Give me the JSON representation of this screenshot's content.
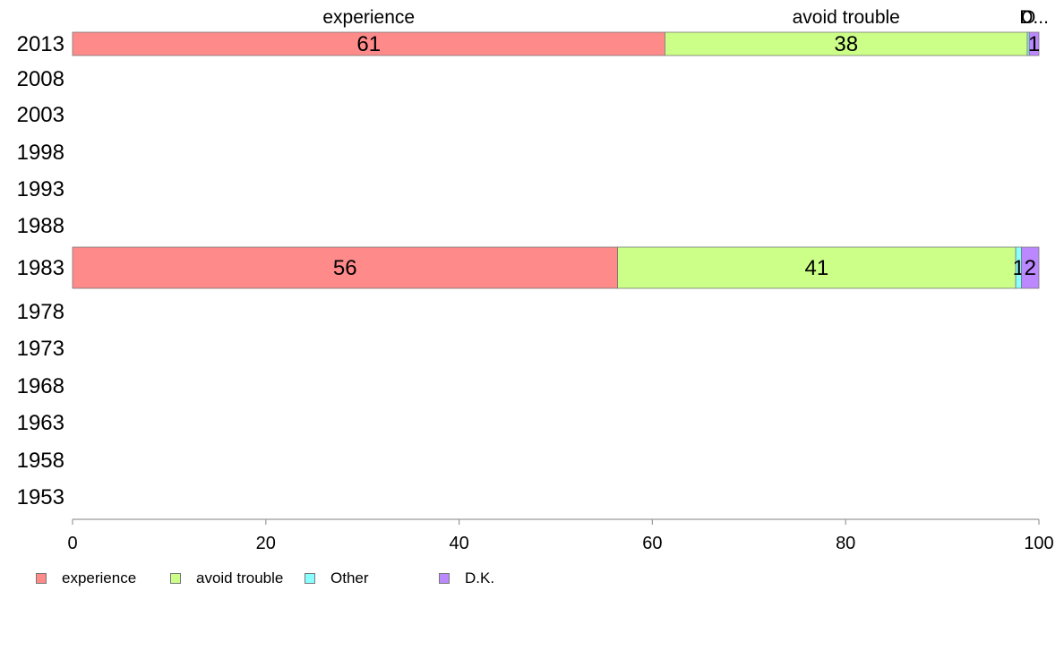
{
  "chart_data": {
    "type": "bar",
    "orientation": "horizontal",
    "stacked": true,
    "categories": [
      "2013",
      "2008",
      "2003",
      "1998",
      "1993",
      "1988",
      "1983",
      "1978",
      "1973",
      "1968",
      "1963",
      "1958",
      "1953"
    ],
    "series": [
      {
        "name": "experience",
        "color": "#ff8a8a",
        "values": [
          61.3,
          null,
          null,
          null,
          null,
          null,
          56.4,
          null,
          null,
          null,
          null,
          null,
          null
        ]
      },
      {
        "name": "avoid trouble",
        "color": "#ccff88",
        "values": [
          37.5,
          null,
          null,
          null,
          null,
          null,
          41.2,
          null,
          null,
          null,
          null,
          null,
          null
        ]
      },
      {
        "name": "Other",
        "color": "#88ffff",
        "values": [
          0.2,
          null,
          null,
          null,
          null,
          null,
          0.6,
          null,
          null,
          null,
          null,
          null,
          null
        ]
      },
      {
        "name": "D.K.",
        "color": "#bb88ff",
        "values": [
          1.0,
          null,
          null,
          null,
          null,
          null,
          1.8,
          null,
          null,
          null,
          null,
          null,
          null
        ]
      }
    ],
    "bar_labels": {
      "2013": [
        "61",
        "38",
        "",
        "1"
      ],
      "1983": [
        "56",
        "41",
        "1",
        "2"
      ]
    },
    "top_labels": [
      "experience",
      "avoid trouble",
      "O",
      "D..."
    ],
    "xlim": [
      0,
      100
    ],
    "xticks": [
      0,
      20,
      40,
      60,
      80,
      100
    ],
    "xlabel": "",
    "ylabel": "",
    "title": "",
    "grid": false,
    "legend_position": "bottom-left"
  }
}
